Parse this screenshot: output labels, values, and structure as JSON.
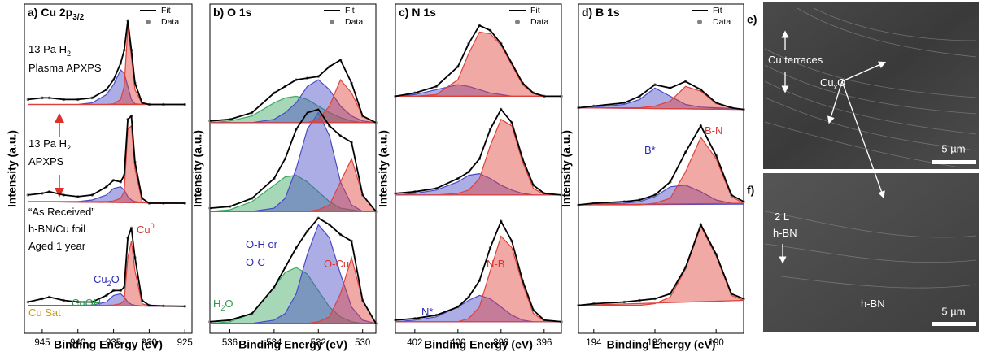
{
  "chart_data": [
    {
      "type": "line",
      "title": "a) Cu 2p",
      "title_sub": "3/2",
      "xlabel": "Binding Energy (eV)",
      "ylabel": "Intensity (a.u.)",
      "xlim": [
        947.5,
        924
      ],
      "xticks": [
        945,
        940,
        935,
        930,
        925
      ],
      "ylim": [
        0,
        10
      ],
      "legend": [
        "Fit",
        "Data"
      ],
      "data_color": "#808080",
      "x": [
        947,
        945,
        944,
        942,
        940,
        938,
        936,
        935,
        934,
        933.5,
        933,
        932.5,
        932,
        931,
        930,
        928,
        925
      ],
      "series": [
        {
          "color": "#000000",
          "values": [
            0.95,
            1.05,
            1.1,
            1.0,
            0.95,
            0.95,
            1.15,
            1.3,
            1.3,
            1.4,
            2.9,
            3.2,
            2.3,
            1.0,
            0.85,
            0.83,
            0.82
          ]
        },
        {
          "color": "#000000",
          "values": [
            4.2,
            4.25,
            4.3,
            4.2,
            4.15,
            4.2,
            4.45,
            4.65,
            4.6,
            4.8,
            6.5,
            6.6,
            5.2,
            4.1,
            3.95,
            3.95,
            3.95
          ]
        },
        {
          "color": "#000000",
          "values": [
            7.1,
            7.15,
            7.15,
            7.1,
            7.1,
            7.15,
            7.4,
            7.7,
            8.2,
            8.6,
            9.5,
            8.6,
            7.6,
            7.0,
            6.95,
            6.95,
            6.95
          ]
        }
      ],
      "components": [
        {
          "color": "#4a4ac8",
          "values": [
            0.85,
            0.85,
            0.85,
            0.85,
            0.85,
            0.86,
            0.95,
            1.15,
            1.2,
            1.1,
            0.95,
            0.88,
            0.85,
            0.83,
            0.82,
            0.82,
            0.82
          ]
        },
        {
          "color": "#e0403a",
          "values": [
            0.85,
            0.85,
            0.85,
            0.85,
            0.85,
            0.85,
            0.85,
            0.86,
            0.9,
            1.0,
            2.3,
            2.8,
            1.9,
            0.9,
            0.83,
            0.82,
            0.82
          ]
        },
        {
          "color": "#4a4ac8",
          "values": [
            4.0,
            4.0,
            4.0,
            4.0,
            4.0,
            4.05,
            4.2,
            4.4,
            4.45,
            4.35,
            4.15,
            4.05,
            4.0,
            3.97,
            3.95,
            3.95,
            3.95
          ]
        },
        {
          "color": "#e0403a",
          "values": [
            4.0,
            4.0,
            4.0,
            4.0,
            4.0,
            4.0,
            4.0,
            4.02,
            4.1,
            4.3,
            6.2,
            6.3,
            5.0,
            4.0,
            3.95,
            3.95,
            3.95
          ]
        },
        {
          "color": "#4a4ac8",
          "values": [
            6.95,
            6.95,
            6.95,
            6.95,
            6.95,
            7.0,
            7.25,
            7.55,
            8.0,
            7.9,
            7.5,
            7.1,
            6.97,
            6.95,
            6.95,
            6.95,
            6.95
          ]
        },
        {
          "color": "#e0403a",
          "values": [
            6.95,
            6.95,
            6.95,
            6.95,
            6.95,
            6.95,
            6.95,
            6.97,
            7.1,
            7.5,
            9.3,
            8.4,
            7.4,
            6.97,
            6.95,
            6.95,
            6.95
          ]
        }
      ],
      "annotations": [
        {
          "text": "13 Pa H",
          "sub": "2",
          "color": "#000000"
        },
        {
          "text": "Plasma APXPS",
          "color": "#000000"
        },
        {
          "text": "13 Pa H",
          "sub": "2",
          "color": "#000000"
        },
        {
          "text": "APXPS",
          "color": "#000000"
        },
        {
          "text": "“As Received”",
          "color": "#000000"
        },
        {
          "text": "h-BN/Cu foil",
          "color": "#000000"
        },
        {
          "text": "Aged 1 year",
          "color": "#000000"
        },
        {
          "text": "Cu",
          "sup": "0",
          "color": "#e0302b"
        },
        {
          "text": "Cu",
          "sub": "2",
          "tail": "O",
          "color": "#2b2bb8"
        },
        {
          "text": "CuOH",
          "color": "#2a9a4a"
        },
        {
          "text": "Cu Sat",
          "color": "#c89a20"
        }
      ]
    },
    {
      "type": "line",
      "title": "b) O 1s",
      "xlabel": "Binding Energy (eV)",
      "ylabel": "Intensity (a.u.)",
      "xlim": [
        536.9,
        529.4
      ],
      "xticks": [
        536,
        534,
        532,
        530
      ],
      "ylim": [
        0,
        10
      ],
      "legend": [
        "Fit",
        "Data"
      ],
      "data_color": "#808080",
      "x": [
        536.9,
        536,
        535,
        534,
        533.5,
        533,
        532.5,
        532,
        531.5,
        531,
        530.5,
        530,
        529.4
      ],
      "series": [
        {
          "color": "#000000",
          "values": [
            0.35,
            0.4,
            0.6,
            1.4,
            2.0,
            2.6,
            3.1,
            3.5,
            3.3,
            3.0,
            2.8,
            1.0,
            0.3
          ]
        },
        {
          "color": "#000000",
          "values": [
            3.8,
            3.85,
            4.1,
            4.7,
            5.3,
            6.2,
            6.7,
            6.8,
            6.3,
            6.0,
            5.8,
            4.2,
            3.7
          ]
        },
        {
          "color": "#000000",
          "values": [
            6.45,
            6.5,
            6.7,
            7.3,
            7.5,
            7.7,
            7.75,
            7.8,
            8.1,
            8.3,
            7.6,
            6.6,
            6.4
          ]
        }
      ],
      "components": [
        {
          "color": "#3aa860",
          "values": [
            0.3,
            0.35,
            0.6,
            1.4,
            1.85,
            2.0,
            1.8,
            1.3,
            0.8,
            0.5,
            0.35,
            0.3,
            0.3
          ]
        },
        {
          "color": "#4a4ac8",
          "values": [
            0.3,
            0.3,
            0.3,
            0.4,
            0.6,
            1.2,
            2.4,
            3.3,
            2.9,
            1.8,
            0.8,
            0.4,
            0.3
          ]
        },
        {
          "color": "#e0403a",
          "values": [
            0.3,
            0.3,
            0.3,
            0.3,
            0.3,
            0.3,
            0.3,
            0.35,
            0.5,
            1.2,
            2.3,
            1.0,
            0.3
          ]
        },
        {
          "color": "#3aa860",
          "values": [
            3.7,
            3.75,
            4.0,
            4.5,
            4.75,
            4.8,
            4.6,
            4.3,
            4.0,
            3.8,
            3.75,
            3.7,
            3.7
          ]
        },
        {
          "color": "#4a4ac8",
          "values": [
            3.7,
            3.7,
            3.7,
            3.8,
            4.1,
            5.0,
            6.2,
            6.7,
            6.0,
            4.6,
            3.9,
            3.7,
            3.7
          ]
        },
        {
          "color": "#e0403a",
          "values": [
            3.7,
            3.7,
            3.7,
            3.7,
            3.7,
            3.7,
            3.7,
            3.75,
            3.9,
            4.6,
            5.3,
            4.2,
            3.7
          ]
        },
        {
          "color": "#3aa860",
          "values": [
            6.4,
            6.45,
            6.6,
            7.0,
            7.15,
            7.2,
            7.1,
            6.9,
            6.7,
            6.55,
            6.45,
            6.4,
            6.4
          ]
        },
        {
          "color": "#4a4ac8",
          "values": [
            6.4,
            6.4,
            6.4,
            6.5,
            6.7,
            7.0,
            7.5,
            7.7,
            7.4,
            6.9,
            6.6,
            6.45,
            6.4
          ]
        },
        {
          "color": "#e0403a",
          "values": [
            6.4,
            6.4,
            6.4,
            6.4,
            6.4,
            6.4,
            6.4,
            6.5,
            6.9,
            7.7,
            7.3,
            6.6,
            6.4
          ]
        }
      ],
      "annotations": [
        {
          "text": "O-H or",
          "color": "#2b2bb8"
        },
        {
          "text": "O-C",
          "color": "#2b2bb8"
        },
        {
          "text": "H",
          "sub": "2",
          "tail": "O",
          "color": "#2a9a4a"
        },
        {
          "text": "O-Cu",
          "color": "#e0302b"
        }
      ]
    },
    {
      "type": "line",
      "title": "c) N 1s",
      "xlabel": "Binding Energy (eV)",
      "ylabel": "Intensity (a.u.)",
      "xlim": [
        402.9,
        395.2
      ],
      "xticks": [
        402,
        400,
        398,
        396
      ],
      "ylim": [
        0,
        10
      ],
      "legend": [
        "Fit",
        "Data"
      ],
      "data_color": "#808080",
      "x": [
        402.9,
        402,
        401,
        400,
        399.5,
        399,
        398.5,
        398,
        397.5,
        397,
        396.5,
        396,
        395.2
      ],
      "series": [
        {
          "color": "#000000",
          "values": [
            0.4,
            0.45,
            0.55,
            0.8,
            1.1,
            1.6,
            2.6,
            3.4,
            2.8,
            1.6,
            0.7,
            0.4,
            0.35
          ]
        },
        {
          "color": "#000000",
          "values": [
            4.25,
            4.3,
            4.4,
            4.7,
            4.9,
            5.3,
            6.2,
            6.8,
            6.4,
            5.3,
            4.5,
            4.25,
            4.2
          ]
        },
        {
          "color": "#000000",
          "values": [
            7.2,
            7.3,
            7.5,
            8.1,
            8.8,
            9.35,
            9.2,
            8.8,
            8.2,
            7.6,
            7.3,
            7.2,
            7.2
          ]
        }
      ],
      "components": [
        {
          "color": "#4a4ac8",
          "values": [
            0.35,
            0.4,
            0.5,
            0.8,
            1.0,
            1.15,
            1.05,
            0.8,
            0.55,
            0.4,
            0.35,
            0.35,
            0.35
          ]
        },
        {
          "color": "#e0403a",
          "values": [
            0.35,
            0.35,
            0.35,
            0.35,
            0.45,
            0.8,
            1.9,
            2.95,
            2.6,
            1.5,
            0.6,
            0.38,
            0.35
          ]
        },
        {
          "color": "#4a4ac8",
          "values": [
            4.2,
            4.25,
            4.35,
            4.6,
            4.8,
            4.85,
            4.7,
            4.5,
            4.35,
            4.25,
            4.2,
            4.2,
            4.2
          ]
        },
        {
          "color": "#e0403a",
          "values": [
            4.2,
            4.2,
            4.2,
            4.25,
            4.35,
            4.7,
            5.7,
            6.5,
            6.3,
            5.2,
            4.4,
            4.22,
            4.2
          ]
        },
        {
          "color": "#4a4ac8",
          "values": [
            7.2,
            7.25,
            7.4,
            7.55,
            7.5,
            7.4,
            7.3,
            7.25,
            7.2,
            7.2,
            7.2,
            7.2,
            7.2
          ]
        },
        {
          "color": "#e0403a",
          "values": [
            7.2,
            7.2,
            7.25,
            7.7,
            8.5,
            9.15,
            9.1,
            8.75,
            8.15,
            7.55,
            7.28,
            7.2,
            7.2
          ]
        }
      ],
      "annotations": [
        {
          "text": "N*",
          "color": "#2b2bb8"
        },
        {
          "text": "N-B",
          "color": "#e0302b"
        }
      ]
    },
    {
      "type": "line",
      "title": "d) B 1s",
      "xlabel": "Binding Energy (eV)",
      "ylabel": "Intensity (a.u.)",
      "xlim": [
        194.5,
        189.1
      ],
      "xticks": [
        194,
        192,
        190
      ],
      "ylim": [
        0,
        10
      ],
      "legend": [
        "Fit",
        "Data"
      ],
      "data_color": "#808080",
      "x": [
        194.5,
        194,
        193,
        192.5,
        192,
        191.5,
        191,
        190.5,
        190,
        189.5,
        189.1
      ],
      "series": [
        {
          "color": "#000000",
          "values": [
            0.85,
            0.9,
            0.95,
            1.0,
            1.05,
            1.2,
            2.0,
            3.3,
            2.4,
            1.2,
            1.05
          ]
        },
        {
          "color": "#000000",
          "values": [
            3.9,
            3.95,
            4.0,
            4.05,
            4.2,
            4.6,
            5.5,
            6.3,
            5.4,
            4.2,
            4.0
          ]
        },
        {
          "color": "#000000",
          "values": [
            6.85,
            6.9,
            7.0,
            7.2,
            7.55,
            7.45,
            7.65,
            7.4,
            7.0,
            6.85,
            6.8
          ]
        }
      ],
      "components": [
        {
          "color": "#e0403a",
          "values": [
            0.85,
            0.85,
            0.85,
            0.85,
            0.9,
            1.1,
            1.95,
            3.25,
            2.35,
            1.15,
            1.0
          ]
        },
        {
          "color": "#4a4ac8",
          "values": [
            3.9,
            3.92,
            3.95,
            4.0,
            4.15,
            4.45,
            4.5,
            4.3,
            4.05,
            3.95,
            3.92
          ]
        },
        {
          "color": "#e0403a",
          "values": [
            3.9,
            3.9,
            3.9,
            3.9,
            3.95,
            4.1,
            4.9,
            5.95,
            5.3,
            4.15,
            3.95
          ]
        },
        {
          "color": "#4a4ac8",
          "values": [
            6.85,
            6.87,
            6.95,
            7.1,
            7.45,
            7.2,
            6.95,
            6.87,
            6.85,
            6.83,
            6.8
          ]
        },
        {
          "color": "#e0403a",
          "values": [
            6.85,
            6.85,
            6.85,
            6.85,
            6.9,
            7.05,
            7.5,
            7.35,
            6.98,
            6.85,
            6.8
          ]
        }
      ],
      "annotations": [
        {
          "text": "B*",
          "color": "#2b2bb8"
        },
        {
          "text": "B-N",
          "color": "#e0302b"
        }
      ]
    }
  ],
  "images": [
    {
      "label": "e)",
      "scale_bar": "5 µm",
      "annotations": [
        {
          "text": "Cu terraces"
        },
        {
          "text": "Cu",
          "sub": "x",
          "tail": "O"
        }
      ]
    },
    {
      "label": "f)",
      "scale_bar": "5 µm",
      "annotations": [
        {
          "text": "2 L"
        },
        {
          "text": "h-BN"
        },
        {
          "text": "h-BN"
        }
      ]
    }
  ]
}
